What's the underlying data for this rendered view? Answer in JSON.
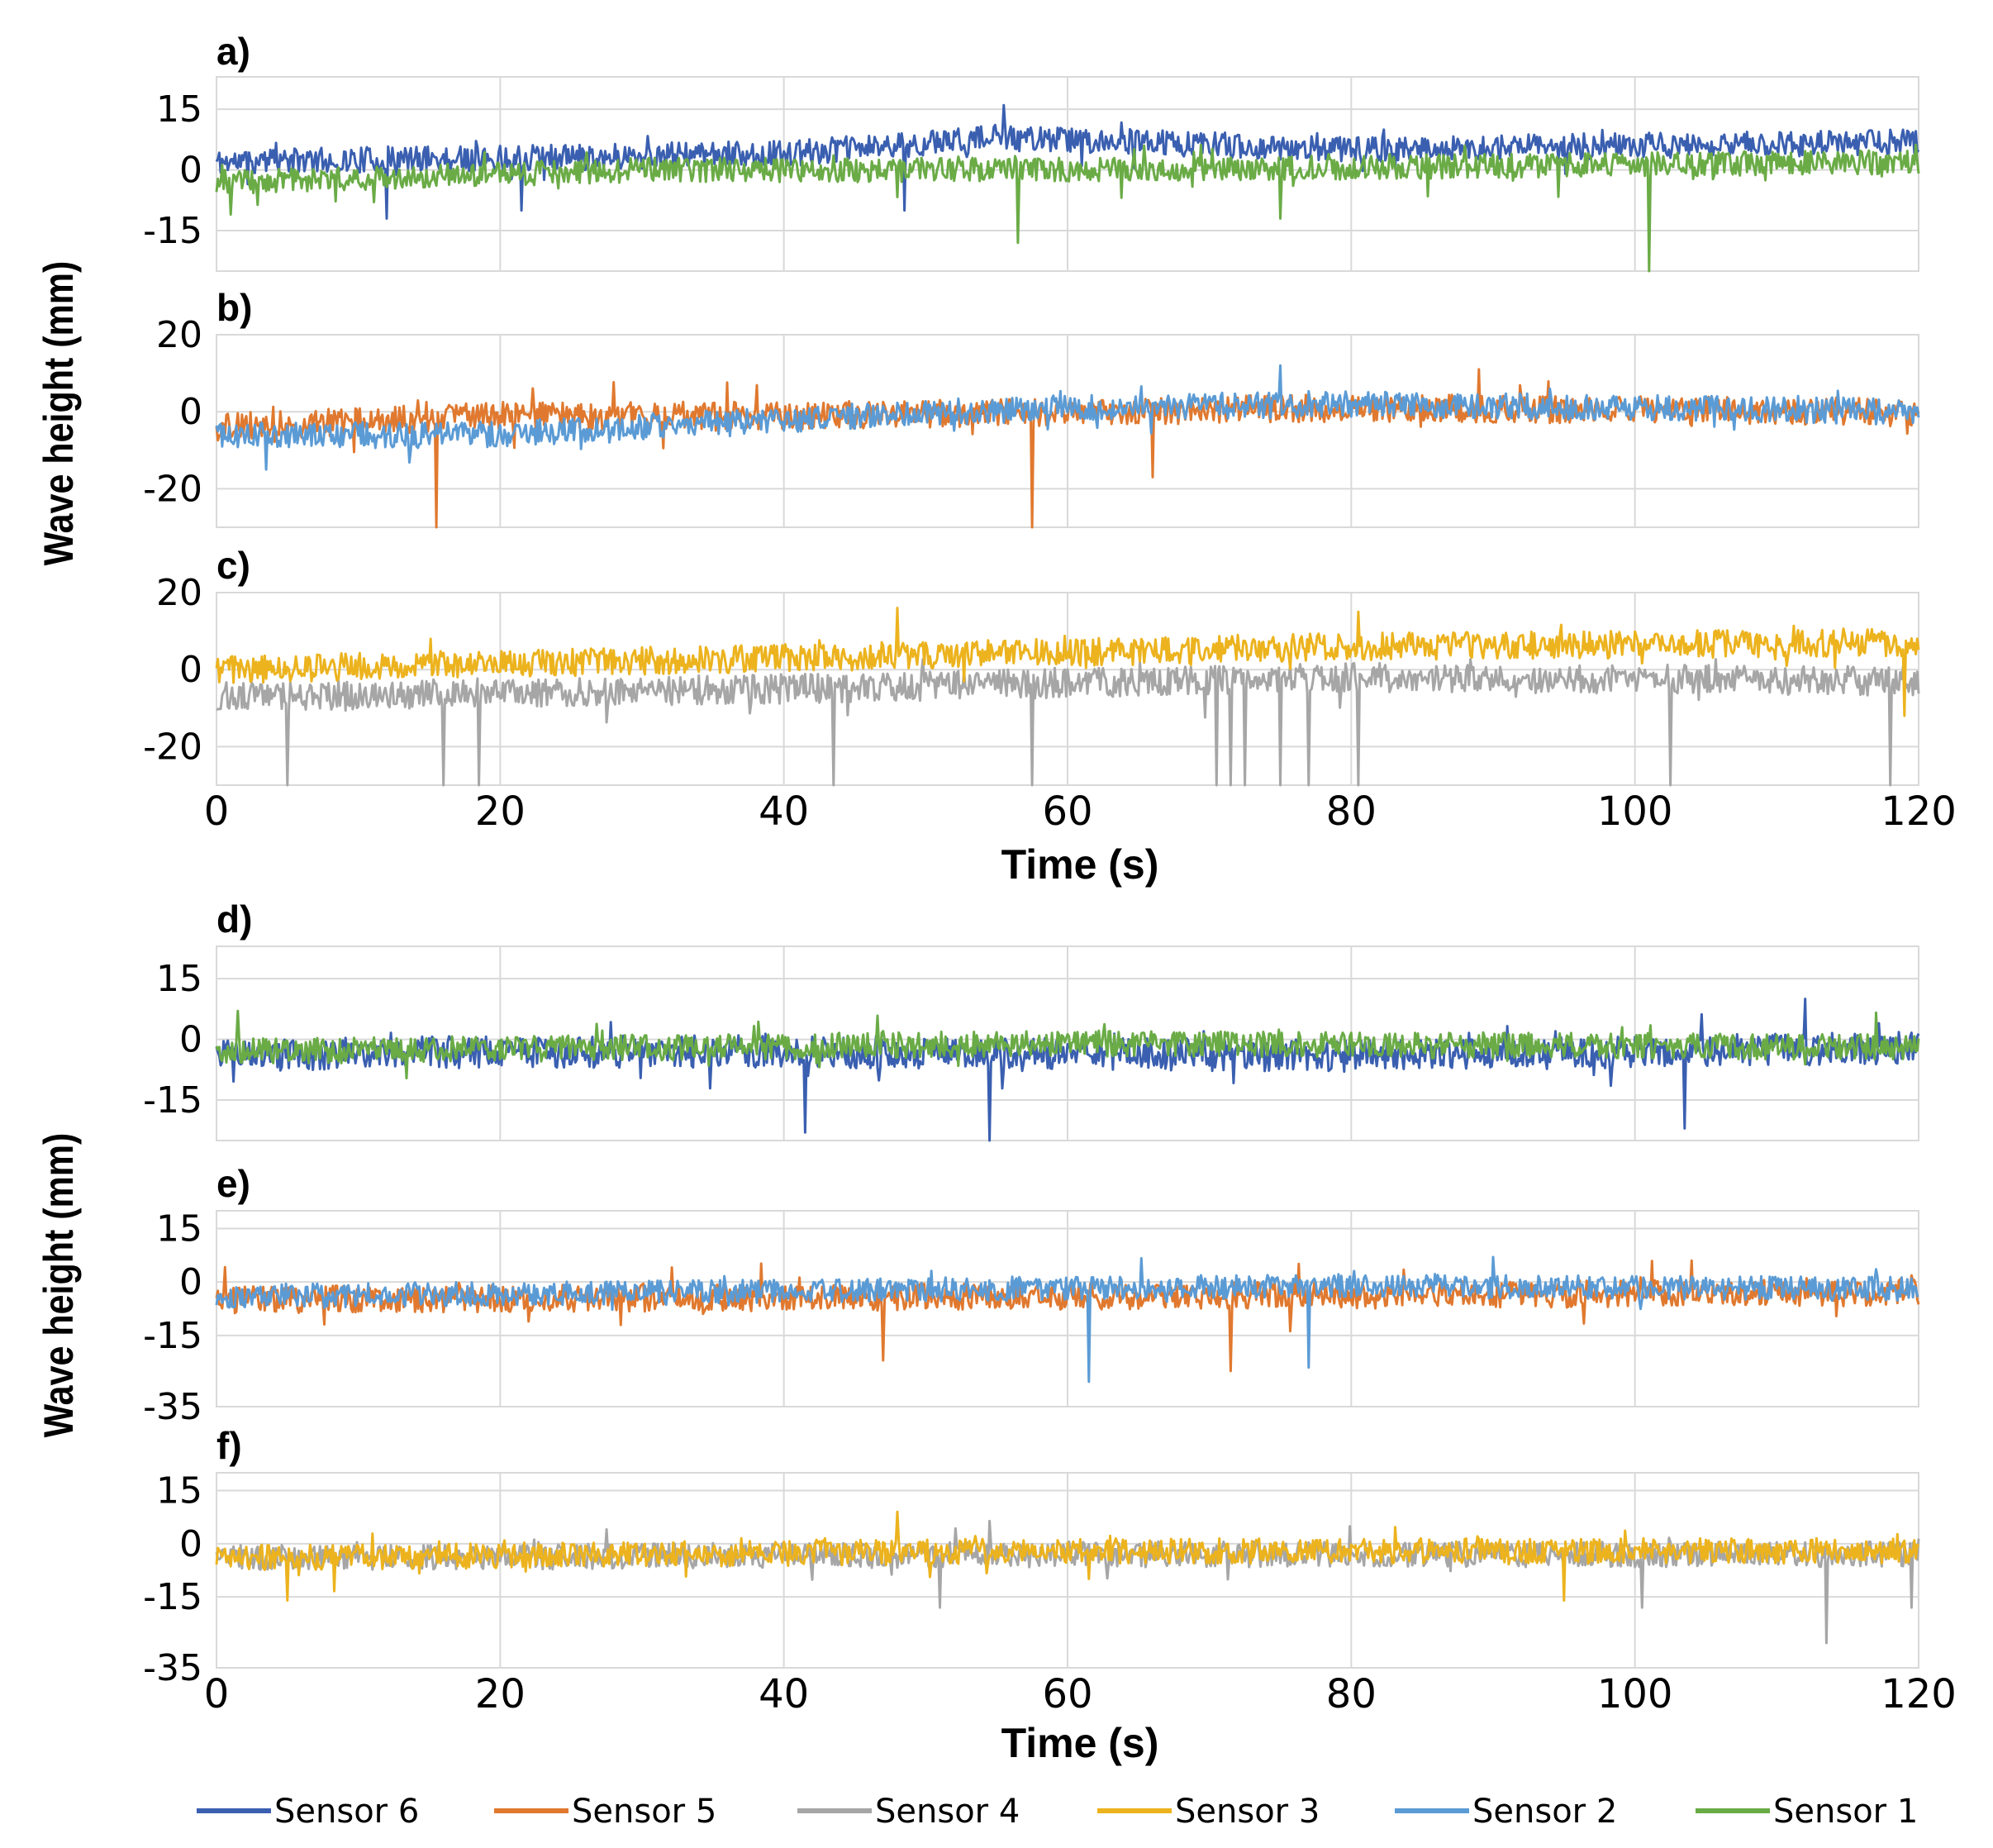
{
  "y_axis_title": "Wave height (mm)",
  "x_axis_title": "Time (s)",
  "colors": {
    "sensor6": "#3a5fb0",
    "sensor5": "#e0792f",
    "sensor4": "#a6a6a6",
    "sensor3": "#ecb31e",
    "sensor2": "#5b9bd5",
    "sensor1": "#6aab46"
  },
  "legend": [
    {
      "name": "Sensor 6",
      "key": "sensor6"
    },
    {
      "name": "Sensor 5",
      "key": "sensor5"
    },
    {
      "name": "Sensor 4",
      "key": "sensor4"
    },
    {
      "name": "Sensor 3",
      "key": "sensor3"
    },
    {
      "name": "Sensor 2",
      "key": "sensor2"
    },
    {
      "name": "Sensor 1",
      "key": "sensor1"
    }
  ],
  "chart_data": [
    {
      "type": "line",
      "panel": "a)",
      "xlim": [
        0,
        120
      ],
      "ylim": [
        -25,
        23
      ],
      "yticks": [
        15,
        0,
        -15
      ],
      "ytick_labels": [
        "15",
        "0",
        "-15"
      ],
      "xticks": [
        0,
        20,
        40,
        60,
        80,
        100,
        120
      ],
      "show_xtick_labels": false,
      "series": [
        {
          "name": "Sensor 6",
          "key": "sensor6",
          "base": 5,
          "amp": 3.2,
          "seed": 11,
          "trend": [
            [
              0,
              2
            ],
            [
              40,
              4
            ],
            [
              55,
              8
            ],
            [
              80,
              5
            ],
            [
              120,
              7
            ]
          ],
          "spikes": [
            [
              12,
              -12
            ],
            [
              21.5,
              -10
            ],
            [
              48.5,
              -10
            ],
            [
              55.5,
              16
            ]
          ]
        },
        {
          "name": "Sensor 1",
          "key": "sensor1",
          "base": 0,
          "amp": 3.0,
          "seed": 23,
          "trend": [
            [
              0,
              -3
            ],
            [
              30,
              0
            ],
            [
              60,
              0
            ],
            [
              120,
              2
            ]
          ],
          "spikes": [
            [
              1,
              -11
            ],
            [
              56.5,
              -18
            ],
            [
              75,
              -12
            ],
            [
              101,
              -25
            ]
          ]
        }
      ]
    },
    {
      "type": "line",
      "panel": "b)",
      "xlim": [
        0,
        120
      ],
      "ylim": [
        -30,
        20
      ],
      "yticks": [
        20,
        0,
        -20
      ],
      "ytick_labels": [
        "20",
        "0",
        "-20"
      ],
      "xticks": [
        0,
        20,
        40,
        60,
        80,
        100,
        120
      ],
      "show_xtick_labels": false,
      "series": [
        {
          "name": "Sensor 5",
          "key": "sensor5",
          "base": 0,
          "amp": 3.6,
          "seed": 37,
          "trend": [
            [
              0,
              -4
            ],
            [
              20,
              -1
            ],
            [
              40,
              -1
            ],
            [
              80,
              1
            ],
            [
              120,
              0
            ]
          ],
          "spikes": [
            [
              15.5,
              -30
            ],
            [
              57.5,
              -30
            ],
            [
              66,
              -17
            ],
            [
              89,
              11
            ]
          ]
        },
        {
          "name": "Sensor 2",
          "key": "sensor2",
          "base": 0,
          "amp": 3.4,
          "seed": 41,
          "trend": [
            [
              0,
              -6
            ],
            [
              20,
              -6
            ],
            [
              40,
              -2
            ],
            [
              60,
              1
            ],
            [
              80,
              2
            ],
            [
              120,
              0
            ]
          ],
          "spikes": [
            [
              3.5,
              -15
            ],
            [
              75,
              12
            ]
          ]
        }
      ]
    },
    {
      "type": "line",
      "panel": "c)",
      "xlim": [
        0,
        120
      ],
      "ylim": [
        -30,
        20
      ],
      "yticks": [
        20,
        0,
        -20
      ],
      "ytick_labels": [
        "20",
        "0",
        "-20"
      ],
      "xticks": [
        0,
        20,
        40,
        60,
        80,
        100,
        120
      ],
      "show_xtick_labels": true,
      "series": [
        {
          "name": "Sensor 4",
          "key": "sensor4",
          "base": -5,
          "amp": 3.8,
          "seed": 53,
          "trend": [
            [
              0,
              -7
            ],
            [
              40,
              -5
            ],
            [
              80,
              -2
            ],
            [
              120,
              -3
            ]
          ],
          "spikes": [
            [
              5,
              -30
            ],
            [
              16,
              -30
            ],
            [
              18.5,
              -30
            ],
            [
              43.5,
              -30
            ],
            [
              57.5,
              -30
            ],
            [
              70.5,
              -30
            ],
            [
              71.5,
              -30
            ],
            [
              72.5,
              -30
            ],
            [
              75,
              -30
            ],
            [
              77,
              -30
            ],
            [
              80.5,
              -30
            ],
            [
              102.5,
              -30
            ],
            [
              118,
              -30
            ]
          ]
        },
        {
          "name": "Sensor 3",
          "key": "sensor3",
          "base": 4,
          "amp": 3.6,
          "seed": 61,
          "trend": [
            [
              0,
              0
            ],
            [
              40,
              3
            ],
            [
              80,
              6
            ],
            [
              120,
              7
            ]
          ],
          "spikes": [
            [
              48,
              16
            ],
            [
              80.5,
              15
            ],
            [
              119,
              -12
            ]
          ]
        }
      ]
    },
    {
      "type": "line",
      "panel": "d)",
      "xlim": [
        0,
        120
      ],
      "ylim": [
        -25,
        23
      ],
      "yticks": [
        15,
        0,
        -15
      ],
      "ytick_labels": [
        "15",
        "0",
        "-15"
      ],
      "xticks": [
        0,
        20,
        40,
        60,
        80,
        100,
        120
      ],
      "show_xtick_labels": false,
      "series": [
        {
          "name": "Sensor 6",
          "key": "sensor6",
          "base": -3,
          "amp": 4.0,
          "seed": 71,
          "trend": [
            [
              0,
              -4
            ],
            [
              20,
              -3
            ],
            [
              40,
              -3
            ],
            [
              80,
              -4
            ],
            [
              120,
              -2
            ]
          ],
          "spikes": [
            [
              41.5,
              -23
            ],
            [
              54.5,
              -25
            ],
            [
              103.5,
              -22
            ],
            [
              112,
              10
            ]
          ]
        },
        {
          "name": "Sensor 1",
          "key": "sensor1",
          "base": -2,
          "amp": 3.2,
          "seed": 83,
          "trend": [
            [
              0,
              -3
            ],
            [
              60,
              -1
            ],
            [
              120,
              -2
            ]
          ],
          "spikes": [
            [
              1.5,
              7
            ]
          ]
        }
      ]
    },
    {
      "type": "line",
      "panel": "e)",
      "xlim": [
        0,
        120
      ],
      "ylim": [
        -35,
        20
      ],
      "yticks": [
        15,
        0,
        -15,
        -35
      ],
      "ytick_labels": [
        "15",
        "0",
        "-15",
        "-35"
      ],
      "xticks": [
        0,
        20,
        40,
        60,
        80,
        100,
        120
      ],
      "show_xtick_labels": false,
      "series": [
        {
          "name": "Sensor 5",
          "key": "sensor5",
          "base": -4,
          "amp": 3.8,
          "seed": 97,
          "trend": [
            [
              0,
              -5
            ],
            [
              60,
              -4
            ],
            [
              120,
              -3
            ]
          ],
          "spikes": [
            [
              47,
              -22
            ],
            [
              71.5,
              -25
            ],
            [
              104,
              6
            ]
          ]
        },
        {
          "name": "Sensor 2",
          "key": "sensor2",
          "base": -3,
          "amp": 3.4,
          "seed": 101,
          "trend": [
            [
              0,
              -4
            ],
            [
              80,
              -1
            ],
            [
              120,
              -2
            ]
          ],
          "spikes": [
            [
              61.5,
              -28
            ],
            [
              77,
              -24
            ],
            [
              90,
              7
            ]
          ]
        }
      ]
    },
    {
      "type": "line",
      "panel": "f)",
      "xlim": [
        0,
        120
      ],
      "ylim": [
        -35,
        20
      ],
      "yticks": [
        15,
        0,
        -15,
        -35
      ],
      "ytick_labels": [
        "15",
        "0",
        "-15",
        "-35"
      ],
      "xticks": [
        0,
        20,
        40,
        60,
        80,
        100,
        120
      ],
      "show_xtick_labels": true,
      "series": [
        {
          "name": "Sensor 4",
          "key": "sensor4",
          "base": -3,
          "amp": 3.6,
          "seed": 113,
          "trend": [
            [
              0,
              -4
            ],
            [
              60,
              -3
            ],
            [
              120,
              -3
            ]
          ],
          "spikes": [
            [
              51,
              -18
            ],
            [
              100.5,
              -18
            ],
            [
              113.5,
              -28
            ],
            [
              119.5,
              -18
            ]
          ]
        },
        {
          "name": "Sensor 3",
          "key": "sensor3",
          "base": -2,
          "amp": 3.6,
          "seed": 127,
          "trend": [
            [
              0,
              -4
            ],
            [
              60,
              -2
            ],
            [
              120,
              -2
            ]
          ],
          "spikes": [
            [
              5,
              -16
            ],
            [
              48,
              9
            ],
            [
              95,
              -16
            ]
          ]
        }
      ]
    }
  ]
}
